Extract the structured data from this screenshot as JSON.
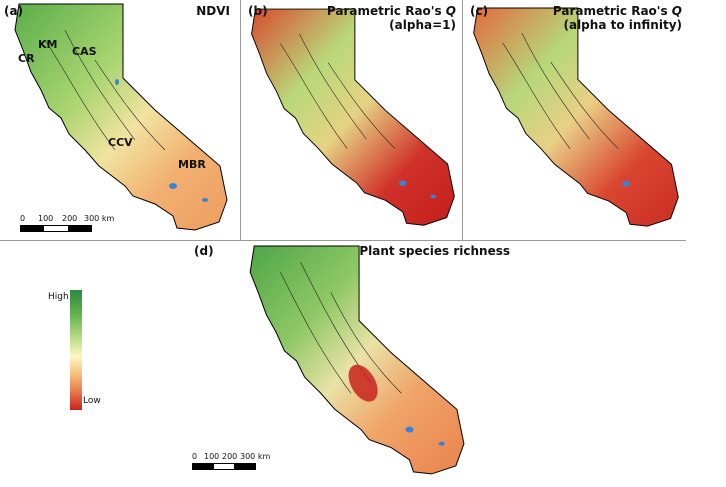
{
  "panels": [
    {
      "tag": "(a)",
      "title": "NDVI",
      "title_italic": "",
      "subtitle": ""
    },
    {
      "tag": "(b)",
      "title": "Parametric Rao's ",
      "title_italic": "Q",
      "subtitle": "(alpha=1)"
    },
    {
      "tag": "(c)",
      "title": "Parametric Rao's ",
      "title_italic": "Q",
      "subtitle": "(alpha to infinity)"
    },
    {
      "tag": "(d)",
      "title": "Plant species richness",
      "title_italic": "",
      "subtitle": ""
    }
  ],
  "regions": {
    "cr": "CR",
    "km": "KM",
    "cas": "CAS",
    "ccv": "CCV",
    "mbr": "MBR"
  },
  "scale_bar": {
    "labels": [
      "0",
      "100",
      "200",
      "300 km"
    ]
  },
  "legend": {
    "high": "High",
    "low": "Low"
  },
  "colors": {
    "high": "#2a8a3f",
    "mid": "#fbf7c6",
    "low": "#c8231f",
    "water": "#3b82d6",
    "outline": "#000000"
  }
}
